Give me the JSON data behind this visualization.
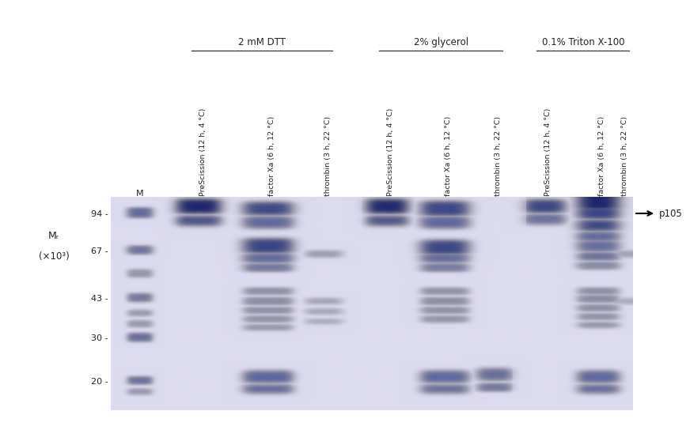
{
  "figure_bg": "#ffffff",
  "gel_bg": "#dddaee",
  "band_color_dark": "#2a3a8a",
  "band_color_mid": "#5060b0",
  "band_color_light": "#8090c8",
  "band_color_verydark": "#151e6e",
  "lane_labels": [
    "PreScission (12 h, 4 °C)",
    "factor Xa (6 h, 12 °C)",
    "thrombin (3 h, 22 °C)",
    "PreScission (12 h, 4 °C)",
    "factor Xa (6 h, 12 °C)",
    "thrombin (3 h, 22 °C)",
    "PreScission (12 h, 4 °C)",
    "factor Xa (6 h, 12 °C)",
    "thrombin (3 h, 22 °C)"
  ],
  "marker_label": "M",
  "group_labels": [
    "2 mM DTT",
    "2% glycerol",
    "0.1% Triton X-100"
  ],
  "mw_values": [
    94,
    67,
    43,
    30,
    20
  ],
  "arrow_label": "p105",
  "mw_axis_label_line1": "Mᵣ",
  "mw_axis_label_line2": "(×10³)"
}
